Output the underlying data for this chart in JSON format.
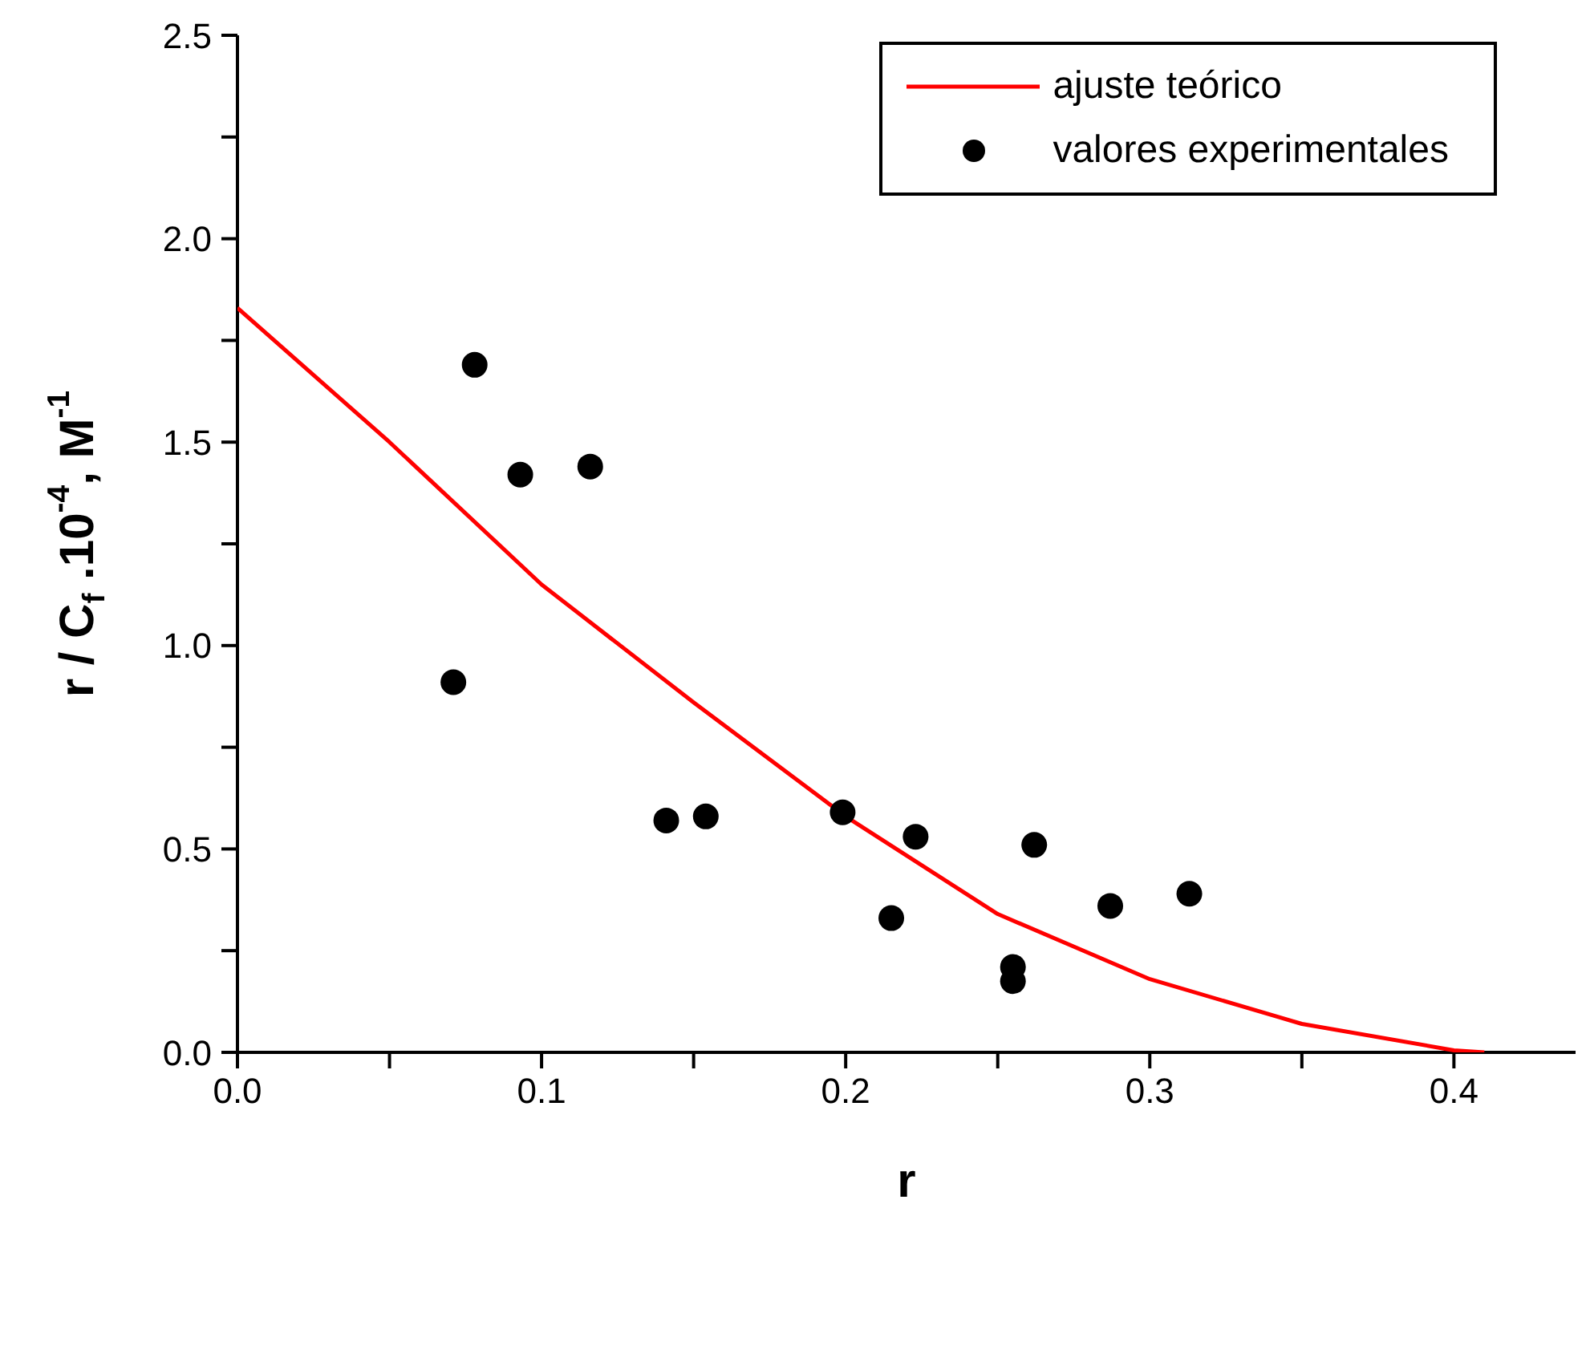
{
  "chart_data": {
    "type": "scatter",
    "xlabel": "r",
    "ylabel": "r / C$_{f}$ .10$^{-4}$, M$^{-1}$",
    "xlim": [
      0,
      0.44
    ],
    "xticks": [
      {
        "value": 0,
        "label": "0.0"
      },
      {
        "value": 0.05,
        "label": null
      },
      {
        "value": 0.1,
        "label": "0.1"
      },
      {
        "value": 0.15,
        "label": null
      },
      {
        "value": 0.2,
        "label": "0.2"
      },
      {
        "value": 0.25,
        "label": null
      },
      {
        "value": 0.3,
        "label": "0.3"
      },
      {
        "value": 0.35,
        "label": null
      },
      {
        "value": 0.4,
        "label": "0.4"
      }
    ],
    "ylim": [
      0,
      2.5
    ],
    "yticks": [
      {
        "value": 0,
        "label": "0.0"
      },
      {
        "value": 0.25,
        "label": null
      },
      {
        "value": 0.5,
        "label": "0.5"
      },
      {
        "value": 0.75,
        "label": null
      },
      {
        "value": 1,
        "label": "1.0"
      },
      {
        "value": 1.25,
        "label": null
      },
      {
        "value": 1.5,
        "label": "1.5"
      },
      {
        "value": 1.75,
        "label": null
      },
      {
        "value": 2,
        "label": "2.0"
      },
      {
        "value": 2.25,
        "label": null
      },
      {
        "value": 2.5,
        "label": "2.5"
      }
    ],
    "legend": "top right",
    "series": [
      {
        "name": "ajuste teórico",
        "type": "line",
        "color": "#ff0000",
        "marker": "none",
        "line_style": "solid",
        "x": [
          0,
          0.05,
          0.1,
          0.15,
          0.2,
          0.25,
          0.3,
          0.35,
          0.4,
          0.41
        ],
        "values": [
          1.83,
          1.5,
          1.15,
          0.86,
          0.58,
          0.34,
          0.18,
          0.07,
          0.005,
          0
        ]
      },
      {
        "name": "valores experimentales",
        "type": "scatter",
        "color": "#000000",
        "marker": "circle",
        "x": [
          0.071,
          0.078,
          0.093,
          0.116,
          0.141,
          0.154,
          0.199,
          0.215,
          0.223,
          0.255,
          0.255,
          0.262,
          0.287,
          0.313
        ],
        "values": [
          0.91,
          1.69,
          1.42,
          1.44,
          0.57,
          0.58,
          0.59,
          0.33,
          0.53,
          0.21,
          0.175,
          0.51,
          0.36,
          0.39
        ]
      }
    ]
  }
}
